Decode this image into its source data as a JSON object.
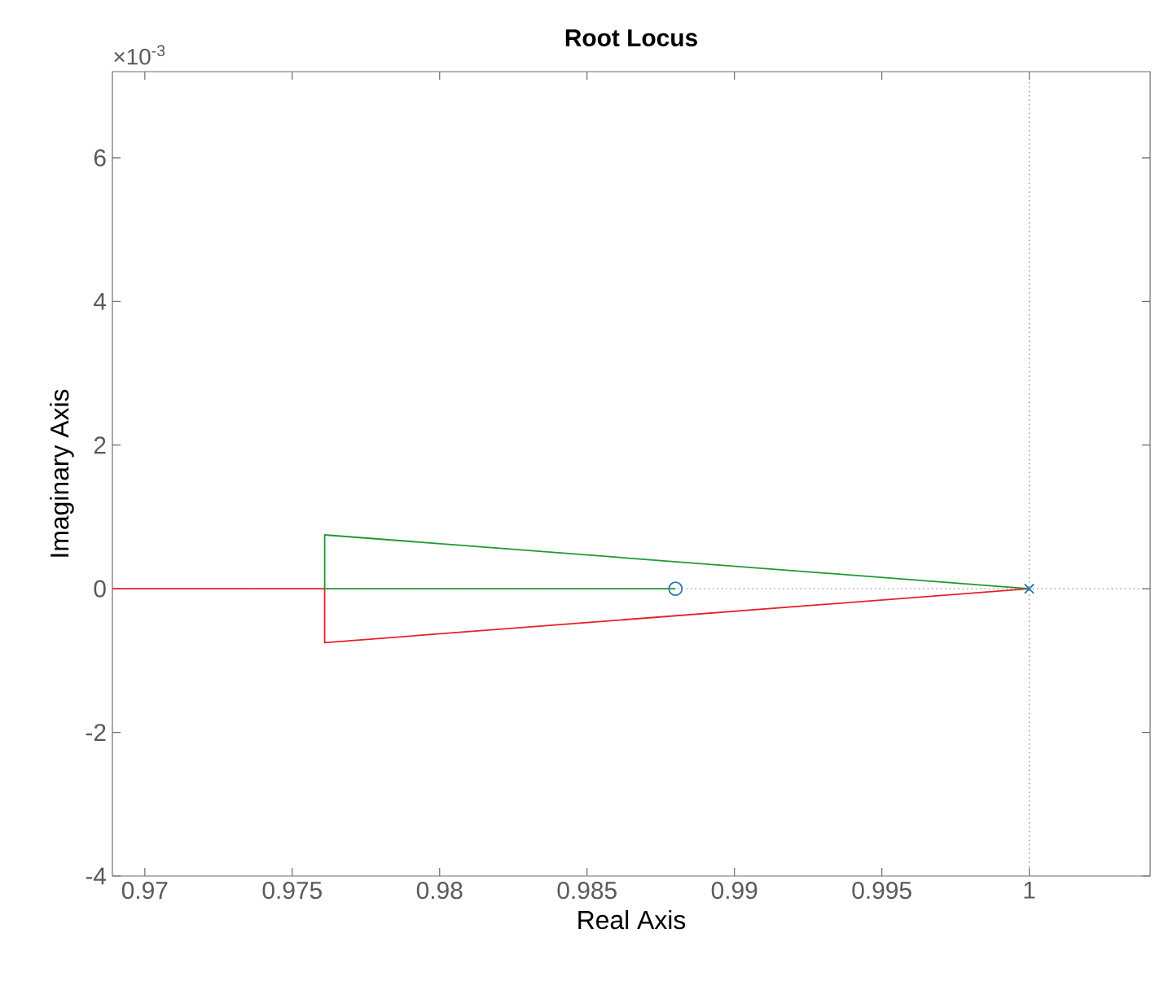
{
  "chart_data": {
    "type": "line",
    "title": "Root Locus",
    "xlabel": "Real Axis",
    "ylabel": "Imaginary Axis",
    "annotations": [
      "×10$^{-3}$"
    ],
    "series": [
      {
        "color": "#e8202a",
        "x": [
          0.9689,
          0.9761,
          0.9761,
          1
        ],
        "values": [
          0,
          0,
          -0.75,
          0
        ],
        "marker": "none",
        "line_style": "solid"
      },
      {
        "color": "#1e9a2e",
        "x": [
          0.988,
          0.9761,
          0.9761,
          1
        ],
        "values": [
          0,
          0,
          0.75,
          0
        ],
        "marker": "none",
        "line_style": "solid"
      },
      {
        "type": "scatter",
        "color": "#2e75b6",
        "x": [
          0.988
        ],
        "values": [
          0
        ],
        "marker": "circle"
      },
      {
        "type": "scatter",
        "color": "#2e75b6",
        "x": [
          1
        ],
        "values": [
          0
        ],
        "marker": "cross"
      }
    ],
    "ref_lines": [
      {
        "axis": "x",
        "value": 1,
        "color": "#8c8c8c",
        "line_style": "dotted"
      },
      {
        "axis": "y",
        "value": 0,
        "color": "#8c8c8c",
        "line_style": "dotted"
      }
    ],
    "xlim": [
      0.9689,
      1.0041
    ],
    "ylim": [
      -4,
      7.2
    ],
    "xticks": [
      0.97,
      0.975,
      0.98,
      0.985,
      0.99,
      0.995,
      1
    ],
    "yticks": [
      -4,
      -2,
      0,
      2,
      4,
      6
    ]
  }
}
